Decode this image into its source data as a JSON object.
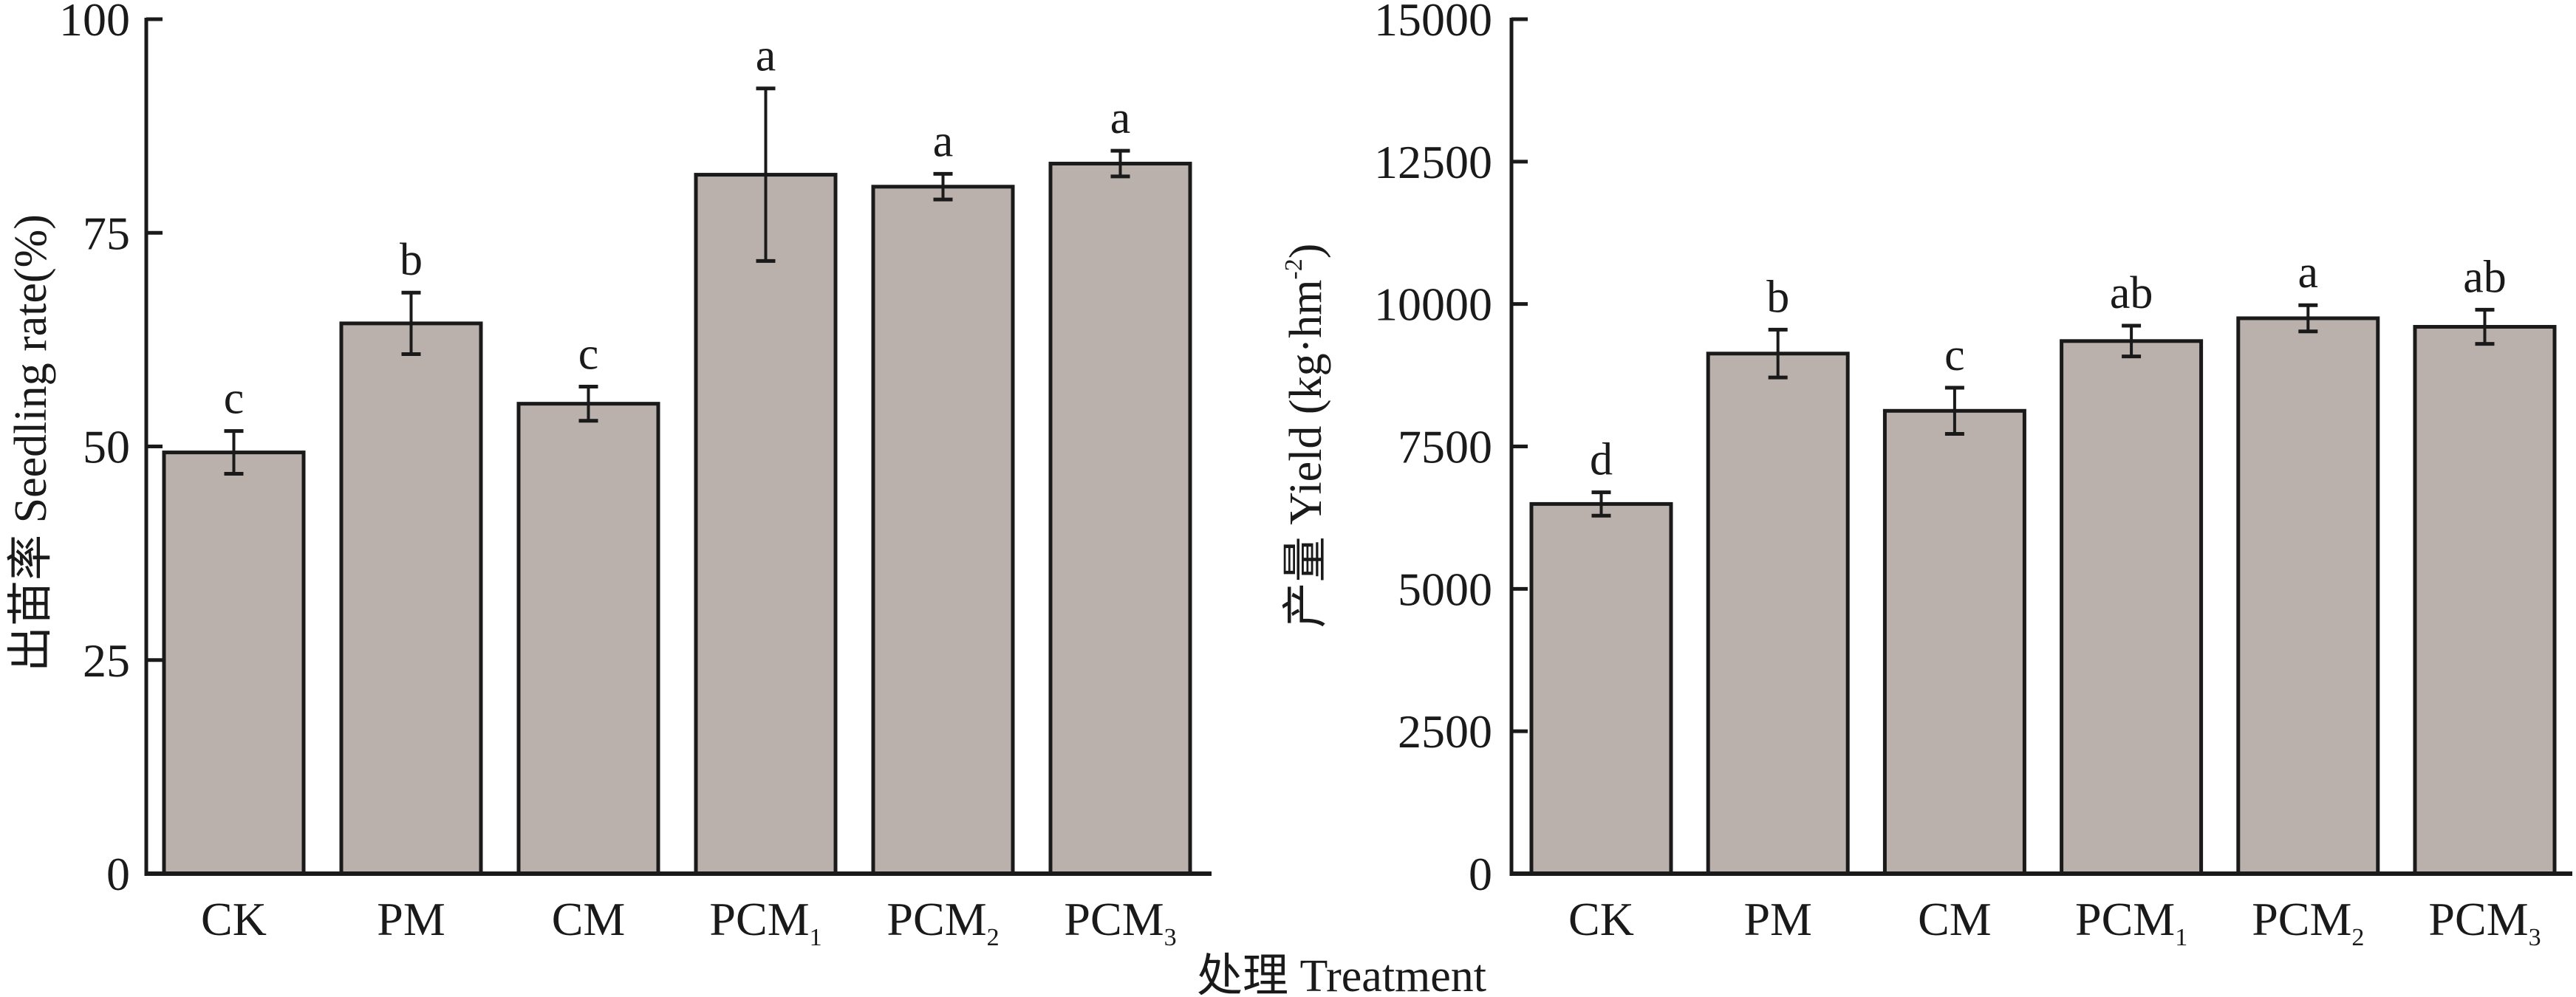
{
  "figure": {
    "shared_xlabel": "处理 Treatment",
    "colors": {
      "bar_fill": "#bab1ad",
      "stroke": "#1a1a1a",
      "background": "#ffffff"
    }
  },
  "chart_data": [
    {
      "type": "bar",
      "title": "",
      "xlabel": "处理 Treatment",
      "ylabel": "出苗率 Seedling rate(%)",
      "ylim": [
        0,
        100
      ],
      "yticks": [
        "0",
        "25",
        "50",
        "75",
        "100"
      ],
      "ytick_values": [
        0,
        25,
        50,
        75,
        100
      ],
      "grid": false,
      "legend": "none",
      "categories": [
        {
          "base": "CK",
          "sub": ""
        },
        {
          "base": "PM",
          "sub": ""
        },
        {
          "base": "CM",
          "sub": ""
        },
        {
          "base": "PCM",
          "sub": "1"
        },
        {
          "base": "PCM",
          "sub": "2"
        },
        {
          "base": "PCM",
          "sub": "3"
        }
      ],
      "values": [
        49.3,
        64.4,
        55.0,
        81.8,
        80.4,
        83.1
      ],
      "errors": [
        2.5,
        3.6,
        2.0,
        10.1,
        1.5,
        1.5
      ],
      "significance": [
        "c",
        "b",
        "c",
        "a",
        "a",
        "a"
      ]
    },
    {
      "type": "bar",
      "title": "",
      "xlabel": "处理 Treatment",
      "ylabel": "产量 Yield (kg·hm⁻²)",
      "ylabel_main": "产量 Yield (kg·hm",
      "ylabel_sup": "-2",
      "ylabel_close": ")",
      "ylim": [
        0,
        15000
      ],
      "yticks": [
        "0",
        "2500",
        "5000",
        "7500",
        "10000",
        "12500",
        "15000"
      ],
      "ytick_values": [
        0,
        2500,
        5000,
        7500,
        10000,
        12500,
        15000
      ],
      "grid": false,
      "legend": "none",
      "categories": [
        {
          "base": "CK",
          "sub": ""
        },
        {
          "base": "PM",
          "sub": ""
        },
        {
          "base": "CM",
          "sub": ""
        },
        {
          "base": "PCM",
          "sub": "1"
        },
        {
          "base": "PCM",
          "sub": "2"
        },
        {
          "base": "PCM",
          "sub": "3"
        }
      ],
      "values": [
        6490,
        9130,
        8125,
        9350,
        9750,
        9600
      ],
      "errors": [
        205,
        420,
        405,
        270,
        230,
        300
      ],
      "significance": [
        "d",
        "b",
        "c",
        "ab",
        "a",
        "ab"
      ]
    }
  ]
}
